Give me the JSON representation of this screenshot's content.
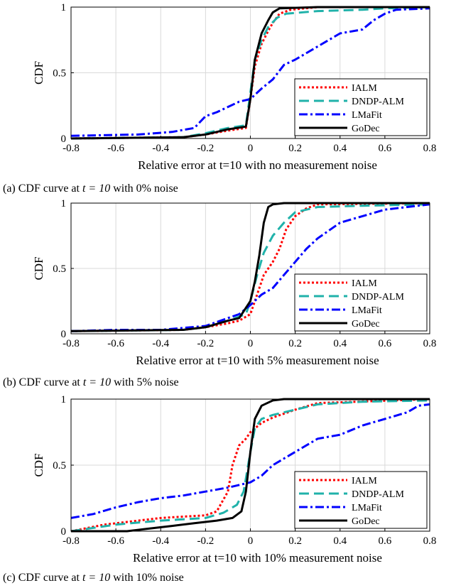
{
  "legend_items": [
    "IALM",
    "DNDP-ALM",
    "LMaFit",
    "GoDec"
  ],
  "colors": {
    "IALM": "#ff0000",
    "DNDP-ALM": "#20b2aa",
    "LMaFit": "#0000ff",
    "GoDec": "#000000",
    "grid": "#d9d9d9"
  },
  "chart_data": [
    {
      "type": "line",
      "ylabel": "CDF",
      "xlabel": "Relative error at t=10 with no measurement noise",
      "caption_pre": "(a) CDF curve at ",
      "caption_math": "t = 10",
      "caption_post": " with 0% noise",
      "xlim": [
        -0.8,
        0.8
      ],
      "ylim": [
        0,
        1
      ],
      "xticks": [
        "-0.8",
        "-0.6",
        "-0.4",
        "-0.2",
        "0",
        "0.2",
        "0.4",
        "0.6",
        "0.8"
      ],
      "yticks": [
        "0",
        "0.5",
        "1"
      ],
      "grid": true,
      "legend": "bottom-right",
      "series": [
        {
          "name": "IALM",
          "x": [
            -0.8,
            -0.3,
            -0.2,
            -0.1,
            -0.02,
            0.0,
            0.02,
            0.05,
            0.08,
            0.1,
            0.13,
            0.18,
            0.3,
            0.8
          ],
          "y": [
            0.0,
            0.01,
            0.03,
            0.06,
            0.08,
            0.3,
            0.55,
            0.72,
            0.82,
            0.88,
            0.95,
            0.98,
            1.0,
            1.0
          ]
        },
        {
          "name": "DNDP-ALM",
          "x": [
            -0.8,
            -0.3,
            -0.2,
            -0.1,
            -0.02,
            0.0,
            0.02,
            0.05,
            0.08,
            0.12,
            0.16,
            0.3,
            0.5,
            0.6,
            0.8
          ],
          "y": [
            0.0,
            0.01,
            0.04,
            0.08,
            0.1,
            0.35,
            0.6,
            0.75,
            0.85,
            0.92,
            0.95,
            0.97,
            0.98,
            0.99,
            1.0
          ]
        },
        {
          "name": "LMaFit",
          "x": [
            -0.8,
            -0.5,
            -0.35,
            -0.25,
            -0.2,
            -0.15,
            -0.05,
            0.0,
            0.05,
            0.1,
            0.15,
            0.2,
            0.3,
            0.4,
            0.5,
            0.55,
            0.6,
            0.65,
            0.8
          ],
          "y": [
            0.02,
            0.03,
            0.05,
            0.08,
            0.17,
            0.2,
            0.28,
            0.3,
            0.38,
            0.45,
            0.56,
            0.6,
            0.7,
            0.8,
            0.83,
            0.9,
            0.95,
            0.98,
            0.99
          ]
        },
        {
          "name": "GoDec",
          "x": [
            -0.8,
            -0.3,
            -0.2,
            -0.1,
            -0.02,
            0.0,
            0.02,
            0.05,
            0.08,
            0.1,
            0.13,
            0.3,
            0.8
          ],
          "y": [
            0.0,
            0.01,
            0.03,
            0.07,
            0.09,
            0.3,
            0.6,
            0.8,
            0.9,
            0.96,
            0.99,
            1.0,
            1.0
          ]
        }
      ]
    },
    {
      "type": "line",
      "ylabel": "CDF",
      "xlabel": "Relative error at t=10 with 5% measurement noise",
      "caption_pre": "(b) CDF curve at ",
      "caption_math": "t = 10",
      "caption_post": " with 5% noise",
      "xlim": [
        -0.8,
        0.8
      ],
      "ylim": [
        0,
        1
      ],
      "xticks": [
        "-0.8",
        "-0.6",
        "-0.4",
        "-0.2",
        "0",
        "0.2",
        "0.4",
        "0.6",
        "0.8"
      ],
      "yticks": [
        "0",
        "0.5",
        "1"
      ],
      "grid": true,
      "legend": "bottom-right",
      "series": [
        {
          "name": "IALM",
          "x": [
            -0.8,
            -0.3,
            -0.2,
            -0.1,
            -0.05,
            0.0,
            0.03,
            0.06,
            0.1,
            0.13,
            0.16,
            0.2,
            0.25,
            0.3,
            0.8
          ],
          "y": [
            0.02,
            0.03,
            0.05,
            0.08,
            0.1,
            0.15,
            0.3,
            0.45,
            0.55,
            0.65,
            0.8,
            0.9,
            0.96,
            0.99,
            1.0
          ]
        },
        {
          "name": "DNDP-ALM",
          "x": [
            -0.8,
            -0.3,
            -0.2,
            -0.1,
            -0.02,
            0.0,
            0.03,
            0.06,
            0.1,
            0.15,
            0.2,
            0.3,
            0.5,
            0.8
          ],
          "y": [
            0.02,
            0.03,
            0.05,
            0.1,
            0.15,
            0.25,
            0.45,
            0.62,
            0.75,
            0.85,
            0.93,
            0.97,
            0.98,
            0.99
          ]
        },
        {
          "name": "LMaFit",
          "x": [
            -0.8,
            -0.6,
            -0.4,
            -0.2,
            -0.05,
            0.0,
            0.05,
            0.1,
            0.15,
            0.2,
            0.25,
            0.3,
            0.4,
            0.5,
            0.6,
            0.7,
            0.8
          ],
          "y": [
            0.02,
            0.03,
            0.03,
            0.06,
            0.15,
            0.22,
            0.3,
            0.35,
            0.45,
            0.55,
            0.65,
            0.73,
            0.85,
            0.9,
            0.95,
            0.97,
            0.99
          ]
        },
        {
          "name": "GoDec",
          "x": [
            -0.8,
            -0.3,
            -0.2,
            -0.1,
            -0.05,
            0.0,
            0.02,
            0.04,
            0.06,
            0.08,
            0.1,
            0.15,
            0.3,
            0.8
          ],
          "y": [
            0.02,
            0.03,
            0.05,
            0.1,
            0.12,
            0.25,
            0.4,
            0.6,
            0.85,
            0.97,
            0.99,
            1.0,
            1.0,
            1.0
          ]
        }
      ]
    },
    {
      "type": "line",
      "ylabel": "CDF",
      "xlabel": "Relative error at t=10 with 10% measurement noise",
      "caption_pre": "(c) CDF curve at ",
      "caption_math": "t = 10",
      "caption_post": " with 10% noise",
      "xlim": [
        -0.8,
        0.8
      ],
      "ylim": [
        0,
        1
      ],
      "xticks": [
        "-0.8",
        "-0.6",
        "-0.4",
        "-0.2",
        "0",
        "0.2",
        "0.4",
        "0.6",
        "0.8"
      ],
      "yticks": [
        "0",
        "0.5",
        "1"
      ],
      "grid": true,
      "legend": "bottom-right",
      "series": [
        {
          "name": "IALM",
          "x": [
            -0.8,
            -0.65,
            -0.5,
            -0.4,
            -0.3,
            -0.2,
            -0.15,
            -0.1,
            -0.08,
            -0.05,
            -0.02,
            0.0,
            0.05,
            0.1,
            0.2,
            0.3,
            0.8
          ],
          "y": [
            0.0,
            0.05,
            0.08,
            0.1,
            0.11,
            0.12,
            0.15,
            0.3,
            0.5,
            0.65,
            0.7,
            0.75,
            0.82,
            0.86,
            0.92,
            0.97,
            1.0
          ]
        },
        {
          "name": "DNDP-ALM",
          "x": [
            -0.8,
            -0.6,
            -0.4,
            -0.2,
            -0.12,
            -0.06,
            -0.03,
            -0.02,
            0.0,
            0.02,
            0.05,
            0.1,
            0.2,
            0.3,
            0.5,
            0.8
          ],
          "y": [
            0.0,
            0.05,
            0.08,
            0.1,
            0.14,
            0.2,
            0.3,
            0.4,
            0.6,
            0.78,
            0.85,
            0.88,
            0.92,
            0.96,
            0.98,
            0.99
          ]
        },
        {
          "name": "LMaFit",
          "x": [
            -0.8,
            -0.7,
            -0.6,
            -0.5,
            -0.4,
            -0.3,
            -0.2,
            -0.1,
            -0.05,
            0.0,
            0.05,
            0.1,
            0.2,
            0.3,
            0.4,
            0.5,
            0.6,
            0.7,
            0.75,
            0.8
          ],
          "y": [
            0.1,
            0.13,
            0.18,
            0.22,
            0.25,
            0.27,
            0.3,
            0.33,
            0.35,
            0.37,
            0.42,
            0.5,
            0.6,
            0.7,
            0.73,
            0.8,
            0.85,
            0.9,
            0.95,
            0.96
          ]
        },
        {
          "name": "GoDec",
          "x": [
            -0.8,
            -0.55,
            -0.45,
            -0.35,
            -0.25,
            -0.15,
            -0.08,
            -0.04,
            -0.02,
            0.0,
            0.02,
            0.05,
            0.1,
            0.15,
            0.8
          ],
          "y": [
            0.0,
            0.0,
            0.02,
            0.04,
            0.06,
            0.08,
            0.1,
            0.15,
            0.3,
            0.6,
            0.85,
            0.95,
            0.99,
            1.0,
            1.0
          ]
        }
      ]
    }
  ]
}
